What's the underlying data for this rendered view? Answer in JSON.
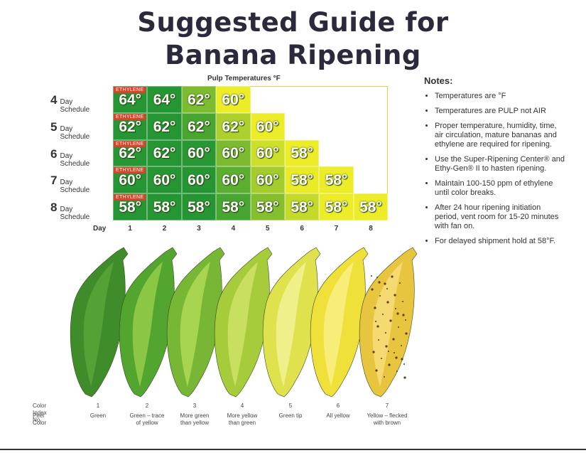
{
  "title_lines": [
    "Suggested Guide for",
    "Banana Ripening"
  ],
  "table": {
    "header": "Pulp Temperatures °F",
    "ethylene_label": "ETHYLENE",
    "day_label": "Day",
    "days": [
      "1",
      "2",
      "3",
      "4",
      "5",
      "6",
      "7",
      "8"
    ],
    "rows": [
      {
        "number": "4",
        "label": "Day Schedule",
        "temps": [
          "64°",
          "64°",
          "62°",
          "60°"
        ]
      },
      {
        "number": "5",
        "label": "Day Schedule",
        "temps": [
          "62°",
          "62°",
          "62°",
          "62°",
          "60°"
        ]
      },
      {
        "number": "6",
        "label": "Day Schedule",
        "temps": [
          "62°",
          "62°",
          "60°",
          "60°",
          "60°",
          "58°"
        ]
      },
      {
        "number": "7",
        "label": "Day Schedule",
        "temps": [
          "60°",
          "60°",
          "60°",
          "60°",
          "60°",
          "58°",
          "58°"
        ]
      },
      {
        "number": "8",
        "label": "Day Schedule",
        "temps": [
          "58°",
          "58°",
          "58°",
          "58°",
          "58°",
          "58°",
          "58°",
          "58°"
        ]
      }
    ]
  },
  "notes": {
    "title": "Notes:",
    "items": [
      "Temperatures are °F",
      "Temperatures are PULP not AIR",
      "Proper temperature, humidity, time, air circulation, mature bananas and ethylene are required for ripening.",
      "Use the Super-Ripening Center® and Ethy-Gen® II to hasten ripening.",
      "Maintain 100-150 ppm of ethylene until color breaks.",
      "After 24 hour ripening initiation period, vent room for 15-20 minutes with fan on.",
      "For delayed shipment hold at 58°F."
    ]
  },
  "color_index": {
    "index_label": "Color Index No.",
    "peel_label": "Peel Color",
    "stages": [
      {
        "number": "1",
        "peel": [
          "Green"
        ]
      },
      {
        "number": "2",
        "peel": [
          "Green – trace",
          "of yellow"
        ]
      },
      {
        "number": "3",
        "peel": [
          "More green",
          "than yellow"
        ]
      },
      {
        "number": "4",
        "peel": [
          "More yellow",
          "than green"
        ]
      },
      {
        "number": "5",
        "peel": [
          "Green tip"
        ]
      },
      {
        "number": "6",
        "peel": [
          "All yellow"
        ]
      },
      {
        "number": "7",
        "peel": [
          "Yellow – flecked",
          "with brown"
        ]
      }
    ]
  }
}
